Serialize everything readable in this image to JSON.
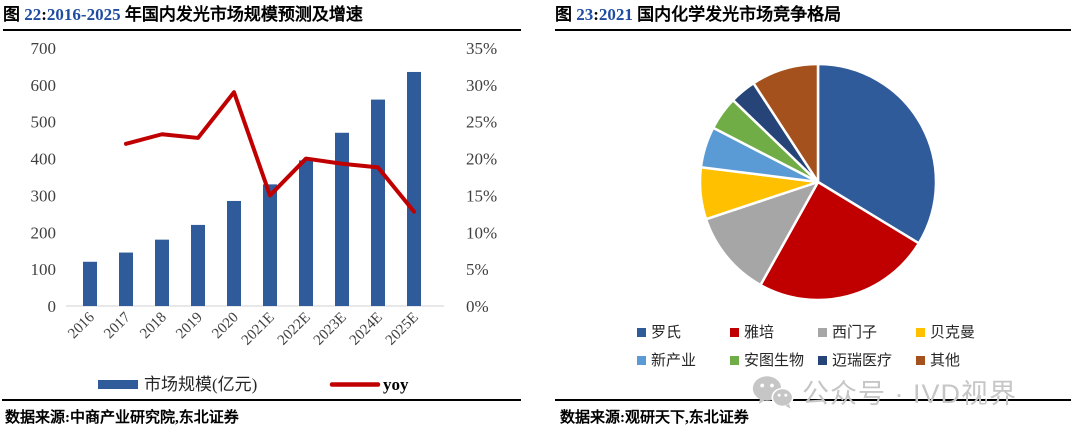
{
  "left_panel": {
    "title": {
      "fig": "图 ",
      "num": "22",
      "colon": ":",
      "highlight": "2016-2025",
      "rest": " 年国内发光市场规模预测及增速"
    },
    "source": "数据来源:中商产业研究院,东北证券"
  },
  "right_panel": {
    "title": {
      "fig": "图 ",
      "num": "23",
      "colon": ":",
      "highlight": "2021",
      "rest": " 国内化学发光市场竞争格局"
    },
    "source": "数据来源:观研天下,东北证券",
    "watermark": "公众号 · IVD视界"
  },
  "chart_data": [
    {
      "type": "combo_bar_line",
      "title": "2016-2025 年国内发光市场规模预测及增速",
      "categories": [
        "2016",
        "2017",
        "2018",
        "2019",
        "2020",
        "2021E",
        "2022E",
        "2023E",
        "2024E",
        "2025E"
      ],
      "series": [
        {
          "name": "市场规模(亿元)",
          "type": "bar",
          "axis": "left",
          "color": "#2F5B9B",
          "values": [
            120,
            145,
            180,
            220,
            285,
            330,
            395,
            470,
            560,
            635
          ]
        },
        {
          "name": "yoy",
          "type": "line",
          "axis": "right",
          "color": "#C00000",
          "values": [
            null,
            22,
            23.3,
            22.8,
            29,
            15,
            20,
            19.3,
            18.8,
            12.8
          ]
        }
      ],
      "left_axis": {
        "min": 0,
        "max": 700,
        "step": 100,
        "ticks": [
          "700",
          "600",
          "500",
          "400",
          "300",
          "200",
          "100",
          "0"
        ]
      },
      "right_axis": {
        "min": 0,
        "max": 35,
        "step": 5,
        "ticks": [
          "35%",
          "30%",
          "25%",
          "20%",
          "15%",
          "10%",
          "5%",
          "0%"
        ]
      },
      "grid": false,
      "legend_position": "bottom",
      "tick_color": "#3F3F3F",
      "axis_line_color": "#D9D9D9"
    },
    {
      "type": "pie",
      "title": "2021 国内化学发光市场竞争格局",
      "start_angle_deg": 0,
      "clockwise": true,
      "slices": [
        {
          "label": "罗氏",
          "name_en": "roche",
          "value": 33.7,
          "color": "#2F5B9B"
        },
        {
          "label": "雅培",
          "name_en": "abbott",
          "value": 24.4,
          "color": "#C00000"
        },
        {
          "label": "西门子",
          "name_en": "siemens",
          "value": 11.8,
          "color": "#A6A6A6"
        },
        {
          "label": "贝克曼",
          "name_en": "beckman",
          "value": 7.1,
          "color": "#FFC000"
        },
        {
          "label": "新产业",
          "name_en": "snibe",
          "value": 5.6,
          "color": "#5B9BD5"
        },
        {
          "label": "安图生物",
          "name_en": "autobio",
          "value": 4.6,
          "color": "#70AD47"
        },
        {
          "label": "迈瑞医疗",
          "name_en": "mindray",
          "value": 3.6,
          "color": "#264478"
        },
        {
          "label": "其他",
          "name_en": "others",
          "value": 9.2,
          "color": "#A5511E"
        }
      ],
      "legend_position": "bottom",
      "legend_rows": [
        [
          "罗氏",
          "雅培",
          "西门子",
          "贝克曼"
        ],
        [
          "新产业",
          "安图生物",
          "迈瑞医疗",
          "其他"
        ]
      ]
    }
  ]
}
